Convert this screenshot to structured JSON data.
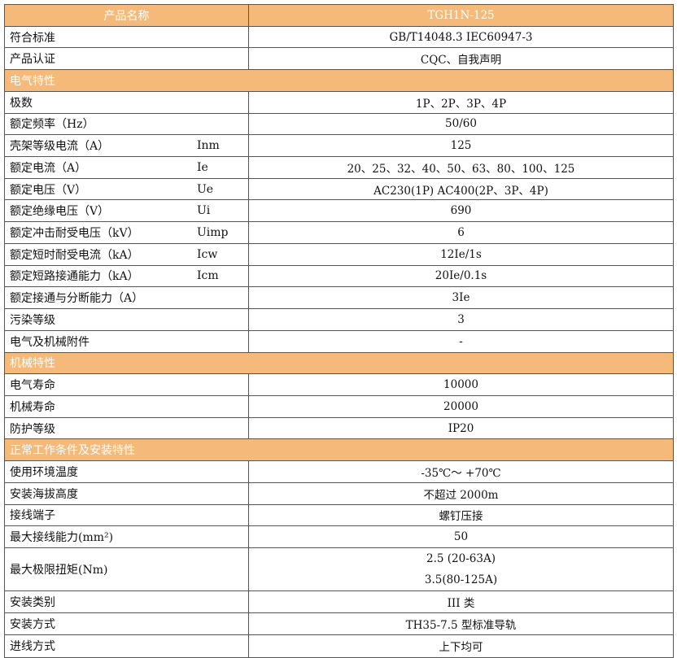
{
  "header": {
    "name_label": "产品名称",
    "value": "TGH1N-125"
  },
  "colors": {
    "section_bg": "#f5b97a",
    "border": "#555555"
  },
  "rows": [
    {
      "type": "row",
      "label": "符合标准",
      "symbol": "",
      "values": [
        "GB/T14048.3    IEC60947-3"
      ]
    },
    {
      "type": "row",
      "label": "产品认证",
      "symbol": "",
      "values": [
        "CQC、自我声明"
      ]
    },
    {
      "type": "section",
      "label": "电气特性"
    },
    {
      "type": "row",
      "label": "极数",
      "symbol": "",
      "values": [
        "1P、2P、3P、4P"
      ]
    },
    {
      "type": "row",
      "label": "额定频率（Hz）",
      "symbol": "",
      "values": [
        "50/60"
      ]
    },
    {
      "type": "row",
      "label": "壳架等级电流（A）",
      "symbol": "Inm",
      "values": [
        "125"
      ]
    },
    {
      "type": "row",
      "label": "额定电流（A）",
      "symbol": "Ie",
      "values": [
        "20、25、32、40、50、63、80、100、125"
      ]
    },
    {
      "type": "row",
      "label": "额定电压（V）",
      "symbol": "Ue",
      "values": [
        "AC230(1P)   AC400(2P、3P、4P)"
      ]
    },
    {
      "type": "row",
      "label": "额定绝缘电压（V）",
      "symbol": "Ui",
      "values": [
        "690"
      ]
    },
    {
      "type": "row",
      "label": "额定冲击耐受电压（kV）",
      "symbol": "Uimp",
      "values": [
        "6"
      ]
    },
    {
      "type": "row",
      "label": "额定短时耐受电流（kA）",
      "symbol": "Icw",
      "values": [
        "12Ie/1s"
      ]
    },
    {
      "type": "row",
      "label": "额定短路接通能力（kA）",
      "symbol": "Icm",
      "values": [
        "20Ie/0.1s"
      ]
    },
    {
      "type": "row",
      "label": "额定接通与分断能力（A）",
      "symbol": "",
      "values": [
        "3Ie"
      ]
    },
    {
      "type": "row",
      "label": "污染等级",
      "symbol": "",
      "values": [
        "3"
      ]
    },
    {
      "type": "row",
      "label": "电气及机械附件",
      "symbol": "",
      "values": [
        "-"
      ]
    },
    {
      "type": "section",
      "label": "机械特性"
    },
    {
      "type": "row",
      "label": "电气寿命",
      "symbol": "",
      "values": [
        "10000"
      ]
    },
    {
      "type": "row",
      "label": "机械寿命",
      "symbol": "",
      "values": [
        "20000"
      ]
    },
    {
      "type": "row",
      "label": "防护等级",
      "symbol": "",
      "values": [
        "IP20"
      ]
    },
    {
      "type": "section",
      "label": "正常工作条件及安装特性"
    },
    {
      "type": "row",
      "label": "使用环境温度",
      "symbol": "",
      "values": [
        "-35℃～ +70℃"
      ]
    },
    {
      "type": "row",
      "label": "安装海拔高度",
      "symbol": "",
      "values": [
        "不超过 2000m"
      ]
    },
    {
      "type": "row",
      "label": "接线端子",
      "symbol": "",
      "values": [
        "螺钉压接"
      ]
    },
    {
      "type": "row",
      "label": "最大接线能力(mm²)",
      "symbol": "",
      "values": [
        "50"
      ]
    },
    {
      "type": "row",
      "label": "最大极限扭矩(Nm)",
      "symbol": "",
      "values": [
        "2.5 (20-63A)",
        "3.5(80-125A)"
      ]
    },
    {
      "type": "row",
      "label": "安装类别",
      "symbol": "",
      "values": [
        "III 类"
      ]
    },
    {
      "type": "row",
      "label": "安装方式",
      "symbol": "",
      "values": [
        "TH35-7.5 型标准导轨"
      ]
    },
    {
      "type": "row",
      "label": "进线方式",
      "symbol": "",
      "values": [
        "上下均可"
      ]
    }
  ]
}
